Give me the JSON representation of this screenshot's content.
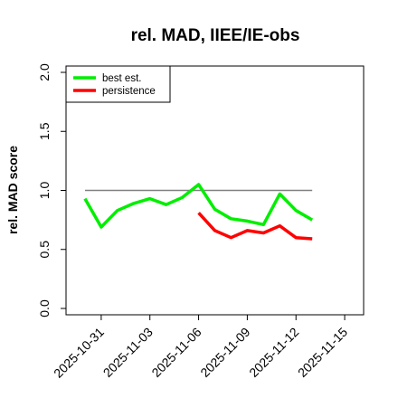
{
  "chart_data": {
    "type": "line",
    "title": "rel. MAD, IIEE/IE-obs",
    "xlabel": "",
    "ylabel": "rel. MAD score",
    "ylim": [
      0.0,
      2.0
    ],
    "yticks": [
      "0.0",
      "0.5",
      "1.0",
      "1.5",
      "2.0"
    ],
    "xticks": [
      "2025-10-31",
      "2025-11-03",
      "2025-11-06",
      "2025-11-09",
      "2025-11-12",
      "2025-11-15"
    ],
    "xrange": [
      "2025-10-29",
      "2025-11-16"
    ],
    "reference_line": 1.0,
    "legend_position": "top-left",
    "series": [
      {
        "name": "best est.",
        "color": "#00ee00",
        "x": [
          "2025-10-30",
          "2025-10-31",
          "2025-11-01",
          "2025-11-02",
          "2025-11-03",
          "2025-11-04",
          "2025-11-05",
          "2025-11-06",
          "2025-11-07",
          "2025-11-08",
          "2025-11-09",
          "2025-11-10",
          "2025-11-11",
          "2025-11-12",
          "2025-11-13"
        ],
        "values": [
          0.93,
          0.69,
          0.83,
          0.89,
          0.93,
          0.88,
          0.94,
          1.05,
          0.84,
          0.76,
          0.74,
          0.71,
          0.97,
          0.83,
          0.75
        ]
      },
      {
        "name": "persistence",
        "color": "#ff0000",
        "x": [
          "2025-11-06",
          "2025-11-07",
          "2025-11-08",
          "2025-11-09",
          "2025-11-10",
          "2025-11-11",
          "2025-11-12",
          "2025-11-13"
        ],
        "values": [
          0.81,
          0.66,
          0.6,
          0.66,
          0.64,
          0.7,
          0.6,
          0.59
        ]
      }
    ]
  }
}
